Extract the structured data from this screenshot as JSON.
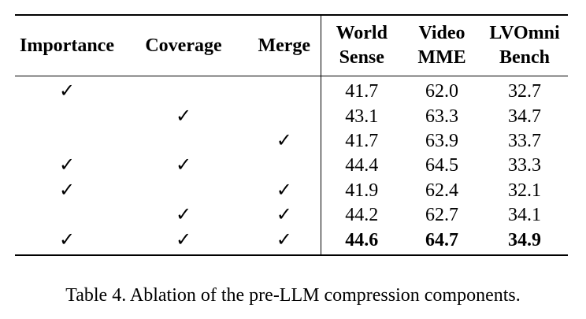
{
  "table": {
    "headers": [
      {
        "lines": [
          "Importance"
        ]
      },
      {
        "lines": [
          "Coverage"
        ]
      },
      {
        "lines": [
          "Merge"
        ]
      },
      {
        "lines": [
          "World",
          "Sense"
        ]
      },
      {
        "lines": [
          "Video",
          "MME"
        ]
      },
      {
        "lines": [
          "LVOmni",
          "Bench"
        ]
      }
    ],
    "rows": [
      {
        "importance": "✓",
        "coverage": "",
        "merge": "",
        "worldsense": "41.7",
        "videomme": "62.0",
        "lvomnibench": "32.7"
      },
      {
        "importance": "",
        "coverage": "✓",
        "merge": "",
        "worldsense": "43.1",
        "videomme": "63.3",
        "lvomnibench": "34.7"
      },
      {
        "importance": "",
        "coverage": "",
        "merge": "✓",
        "worldsense": "41.7",
        "videomme": "63.9",
        "lvomnibench": "33.7"
      },
      {
        "importance": "✓",
        "coverage": "✓",
        "merge": "",
        "worldsense": "44.4",
        "videomme": "64.5",
        "lvomnibench": "33.3"
      },
      {
        "importance": "✓",
        "coverage": "",
        "merge": "✓",
        "worldsense": "41.9",
        "videomme": "62.4",
        "lvomnibench": "32.1"
      },
      {
        "importance": "",
        "coverage": "✓",
        "merge": "✓",
        "worldsense": "44.2",
        "videomme": "62.7",
        "lvomnibench": "34.1"
      },
      {
        "importance": "✓",
        "coverage": "✓",
        "merge": "✓",
        "worldsense": "44.6",
        "videomme": "64.7",
        "lvomnibench": "34.9"
      }
    ]
  },
  "caption": "Table 4. Ablation of the pre-LLM compression components."
}
